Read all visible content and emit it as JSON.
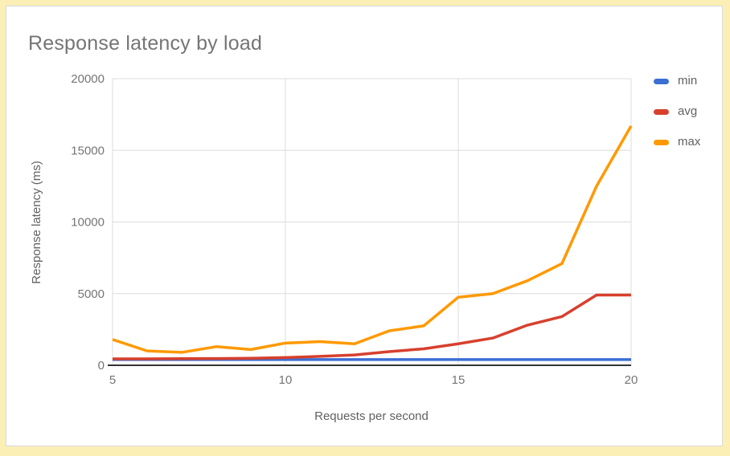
{
  "page": {
    "background": "#FBEFB6"
  },
  "panel": {
    "background": "#FFFFFF",
    "border_color": "#D9D9D9"
  },
  "chart_data": {
    "type": "line",
    "title": "Response latency by load",
    "xlabel": "Requests per second",
    "ylabel": "Response latency (ms)",
    "x": [
      5,
      6,
      7,
      8,
      9,
      10,
      11,
      12,
      13,
      14,
      15,
      16,
      17,
      18,
      19,
      20
    ],
    "series": [
      {
        "name": "min",
        "color": "#3B6FD4",
        "values": [
          400,
          400,
          400,
          400,
          400,
          400,
          400,
          400,
          400,
          400,
          400,
          400,
          400,
          400,
          400,
          400
        ]
      },
      {
        "name": "avg",
        "color": "#D7402D",
        "values": [
          450,
          450,
          460,
          470,
          490,
          540,
          620,
          720,
          950,
          1150,
          1500,
          1900,
          2800,
          3400,
          4900,
          4900
        ]
      },
      {
        "name": "max",
        "color": "#FF9900",
        "values": [
          1800,
          1000,
          900,
          1300,
          1100,
          1550,
          1650,
          1500,
          2400,
          2750,
          4750,
          5000,
          5900,
          7100,
          12500,
          16700
        ]
      }
    ],
    "xlim": [
      5,
      20
    ],
    "ylim": [
      0,
      20000
    ],
    "x_ticks": [
      5,
      10,
      15,
      20
    ],
    "y_ticks": [
      0,
      5000,
      10000,
      15000,
      20000
    ],
    "grid": true,
    "legend_position": "right",
    "colors": {
      "title": "#757575",
      "tick_label": "#757575",
      "axis_title": "#616161",
      "grid_line": "#DCDCDC",
      "axis_line": "#333333",
      "legend_text": "#616161"
    }
  }
}
